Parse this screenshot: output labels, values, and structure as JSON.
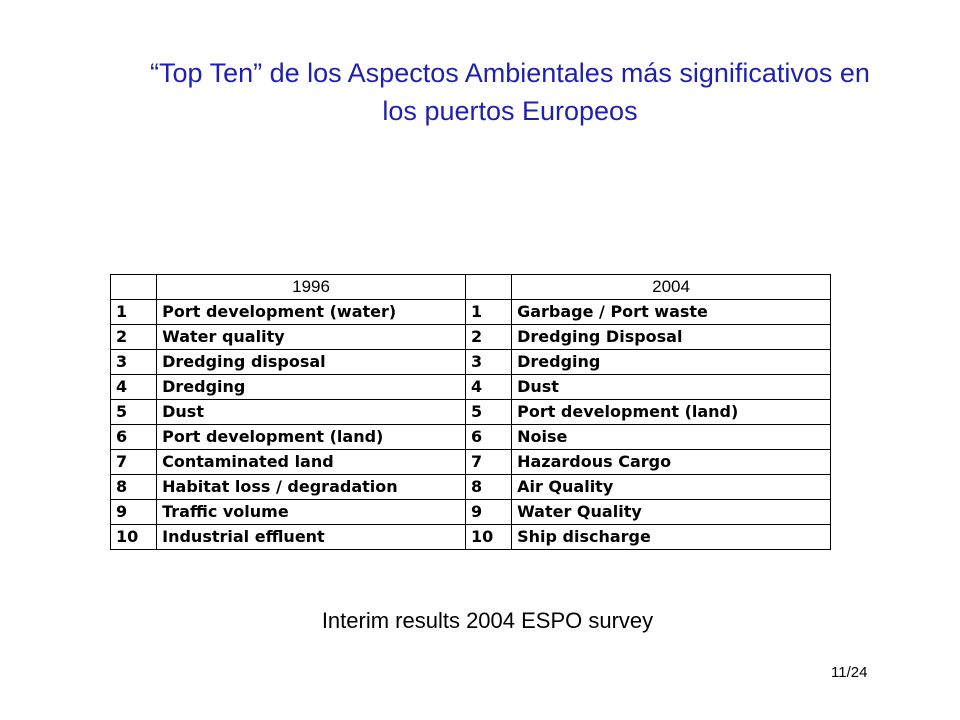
{
  "slide": {
    "title_line1": "“Top Ten” de los Aspectos Ambientales más significativos en",
    "title_line2": "los puertos Europeos",
    "caption": "Interim results 2004 ESPO survey",
    "page_number": "11/24",
    "title_color": "#1f1fb0"
  },
  "table": {
    "header_left": "1996",
    "header_right": "2004",
    "rows": [
      {
        "rank_1996": "1",
        "aspect_1996": "Port development (water)",
        "rank_2004": "1",
        "aspect_2004": "Garbage / Port waste"
      },
      {
        "rank_1996": "2",
        "aspect_1996": "Water quality",
        "rank_2004": "2",
        "aspect_2004": "Dredging Disposal"
      },
      {
        "rank_1996": "3",
        "aspect_1996": "Dredging disposal",
        "rank_2004": "3",
        "aspect_2004": "Dredging"
      },
      {
        "rank_1996": "4",
        "aspect_1996": "Dredging",
        "rank_2004": "4",
        "aspect_2004": "Dust"
      },
      {
        "rank_1996": "5",
        "aspect_1996": "Dust",
        "rank_2004": "5",
        "aspect_2004": "Port development (land)"
      },
      {
        "rank_1996": "6",
        "aspect_1996": "Port development (land)",
        "rank_2004": "6",
        "aspect_2004": "Noise"
      },
      {
        "rank_1996": "7",
        "aspect_1996": "Contaminated land",
        "rank_2004": "7",
        "aspect_2004": "Hazardous Cargo"
      },
      {
        "rank_1996": "8",
        "aspect_1996": "Habitat loss / degradation",
        "rank_2004": "8",
        "aspect_2004": "Air Quality"
      },
      {
        "rank_1996": "9",
        "aspect_1996": "Traffic volume",
        "rank_2004": "9",
        "aspect_2004": "Water Quality"
      },
      {
        "rank_1996": "10",
        "aspect_1996": "Industrial effluent",
        "rank_2004": "10",
        "aspect_2004": "Ship discharge"
      }
    ]
  }
}
